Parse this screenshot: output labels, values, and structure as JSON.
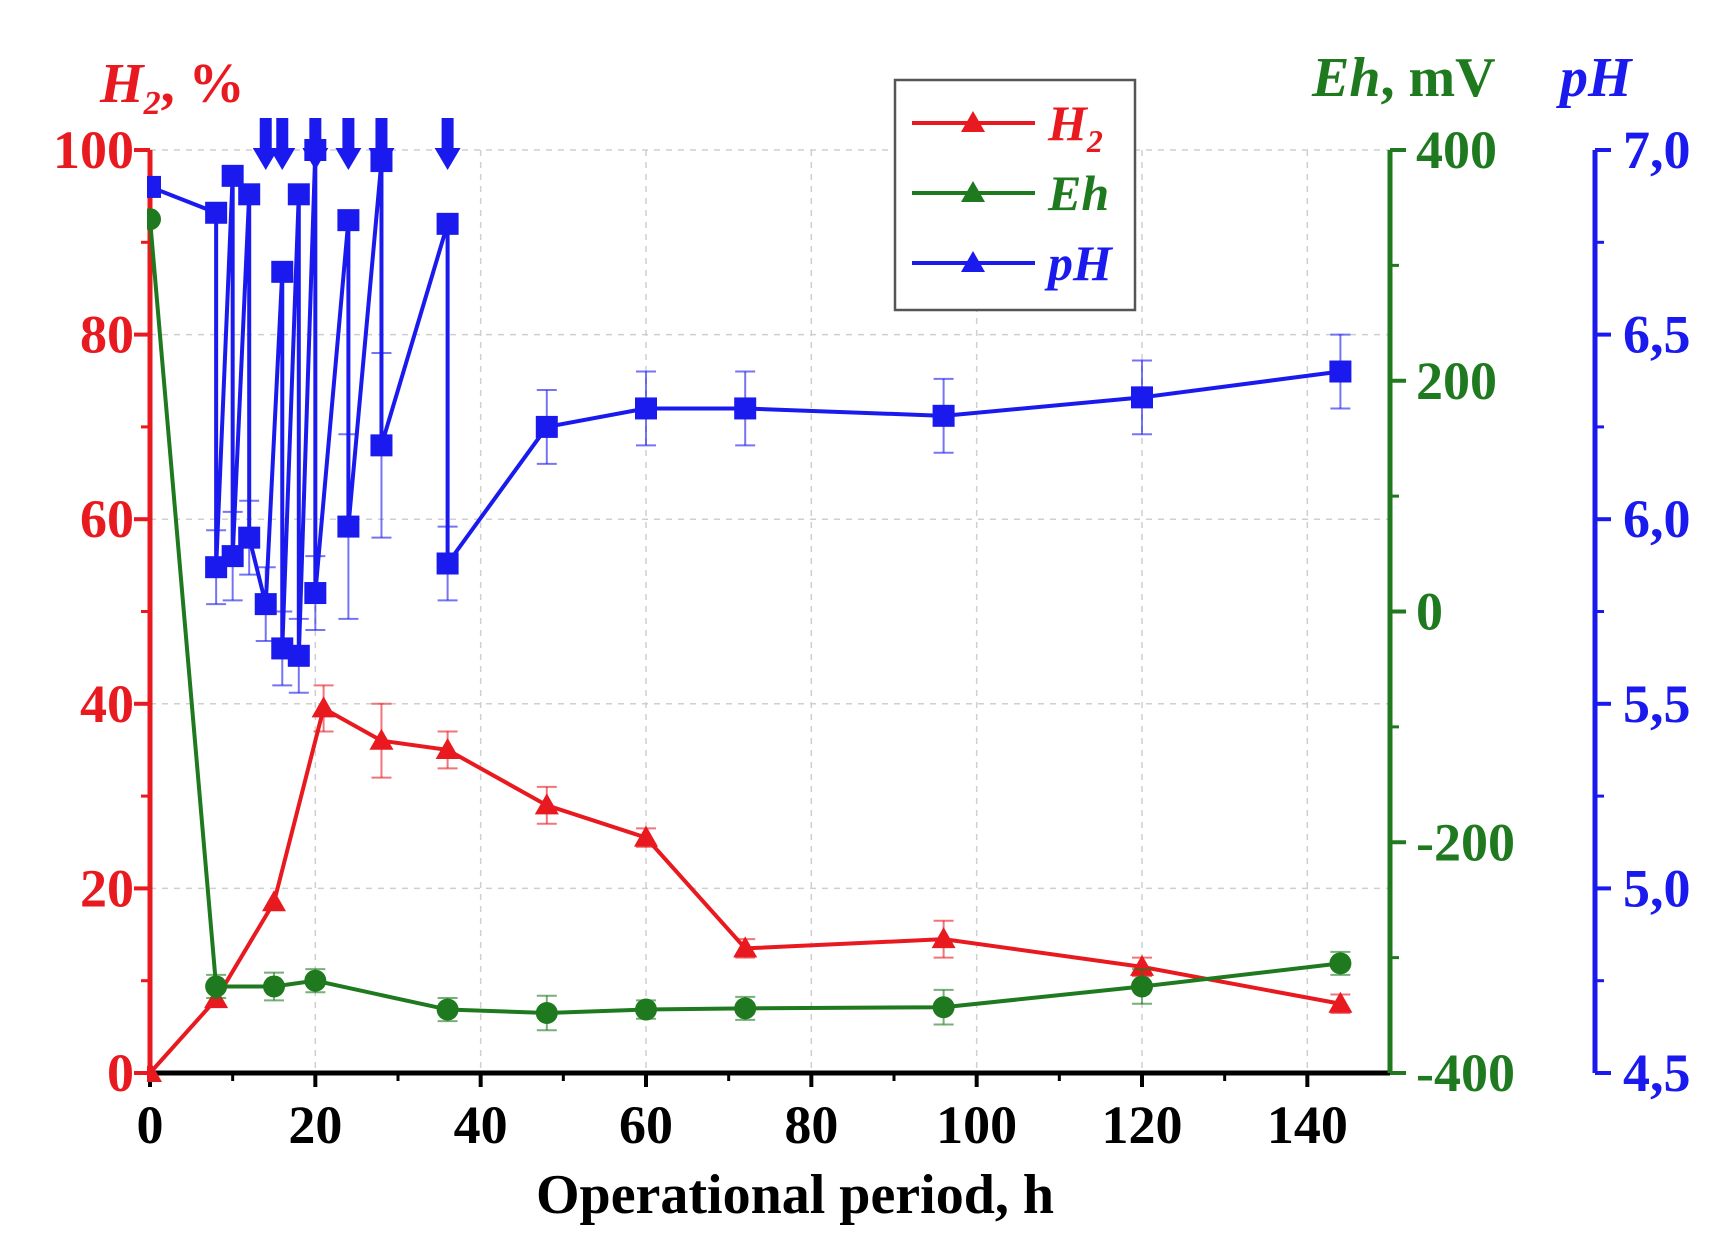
{
  "chart_data": {
    "type": "line",
    "xlabel": "Operational period, h",
    "xlim": [
      0,
      150
    ],
    "xticks": [
      0,
      20,
      40,
      60,
      80,
      100,
      120,
      140
    ],
    "grid": true,
    "legend_position": "top-center",
    "legend": [
      {
        "label": "H",
        "subscript": "2",
        "series": "h2"
      },
      {
        "label": "Eh",
        "subscript": "",
        "series": "eh"
      },
      {
        "label": "pH",
        "subscript": "",
        "series": "ph"
      }
    ],
    "axes": {
      "left": {
        "label": "H",
        "label_sub": "2",
        "label_suffix": ", %",
        "ylim": [
          0,
          100
        ],
        "ticks": [
          0,
          20,
          40,
          60,
          80,
          100
        ],
        "tick_labels": [
          "0",
          "20",
          "40",
          "60",
          "80",
          "100"
        ],
        "color": "#e8191f"
      },
      "right1": {
        "label": "Eh",
        "label_suffix": ", mV",
        "ylim": [
          -400,
          400
        ],
        "ticks": [
          -400,
          -200,
          0,
          200,
          400
        ],
        "tick_labels": [
          "-400",
          "-200",
          "0",
          "200",
          "400"
        ],
        "color": "#1f7a1f"
      },
      "right2": {
        "label": "pH",
        "ylim": [
          4.5,
          7.0
        ],
        "ticks": [
          4.5,
          5.0,
          5.5,
          6.0,
          6.5,
          7.0
        ],
        "tick_labels": [
          "4,5",
          "5,0",
          "5,5",
          "6,0",
          "6,5",
          "7,0"
        ],
        "color": "#1a1aee"
      }
    },
    "series": [
      {
        "name": "H2",
        "key": "h2",
        "axis": "left",
        "marker": "triangle",
        "color": "#e8191f",
        "x": [
          0,
          8,
          15,
          21,
          28,
          36,
          48,
          60,
          72,
          96,
          120,
          144
        ],
        "y": [
          0,
          8,
          18.5,
          39.5,
          36,
          35,
          29,
          25.5,
          13.5,
          14.5,
          11.5,
          7.5
        ],
        "err": [
          0,
          0,
          0,
          2.5,
          4,
          2,
          2,
          1,
          1,
          2,
          1,
          1
        ]
      },
      {
        "name": "Eh",
        "key": "eh",
        "axis": "right1",
        "marker": "circle",
        "color": "#1f7a1f",
        "x": [
          0,
          8,
          15,
          20,
          36,
          48,
          60,
          72,
          96,
          120,
          144
        ],
        "y": [
          340,
          -325,
          -325,
          -320,
          -345,
          -348,
          -345,
          -344,
          -343,
          -325,
          -305
        ],
        "err": [
          0,
          10,
          12,
          10,
          10,
          15,
          8,
          10,
          15,
          15,
          10
        ]
      },
      {
        "name": "pH",
        "key": "ph",
        "axis": "right2",
        "marker": "square",
        "color": "#1a1aee",
        "x": [
          0,
          8,
          10,
          12,
          14,
          16,
          18,
          20,
          24,
          28,
          36,
          48,
          60,
          72,
          96,
          120,
          144
        ],
        "y": [
          6.9,
          5.87,
          5.9,
          5.95,
          5.77,
          5.65,
          5.63,
          5.8,
          5.98,
          6.2,
          5.88,
          6.25,
          6.3,
          6.3,
          6.28,
          6.33,
          6.4
        ],
        "err": [
          0,
          0.1,
          0.12,
          0.1,
          0.1,
          0.1,
          0.1,
          0.1,
          0.25,
          0.25,
          0.1,
          0.1,
          0.1,
          0.1,
          0.1,
          0.1,
          0.1
        ],
        "peak_x": [
          8,
          10,
          12,
          16,
          18,
          20,
          24,
          28,
          36
        ],
        "peak_y": [
          6.83,
          6.93,
          6.88,
          6.67,
          6.88,
          7.0,
          6.81,
          6.97,
          6.8
        ]
      }
    ],
    "arrows_at_x": [
      14,
      16,
      20,
      24,
      28,
      36
    ]
  }
}
